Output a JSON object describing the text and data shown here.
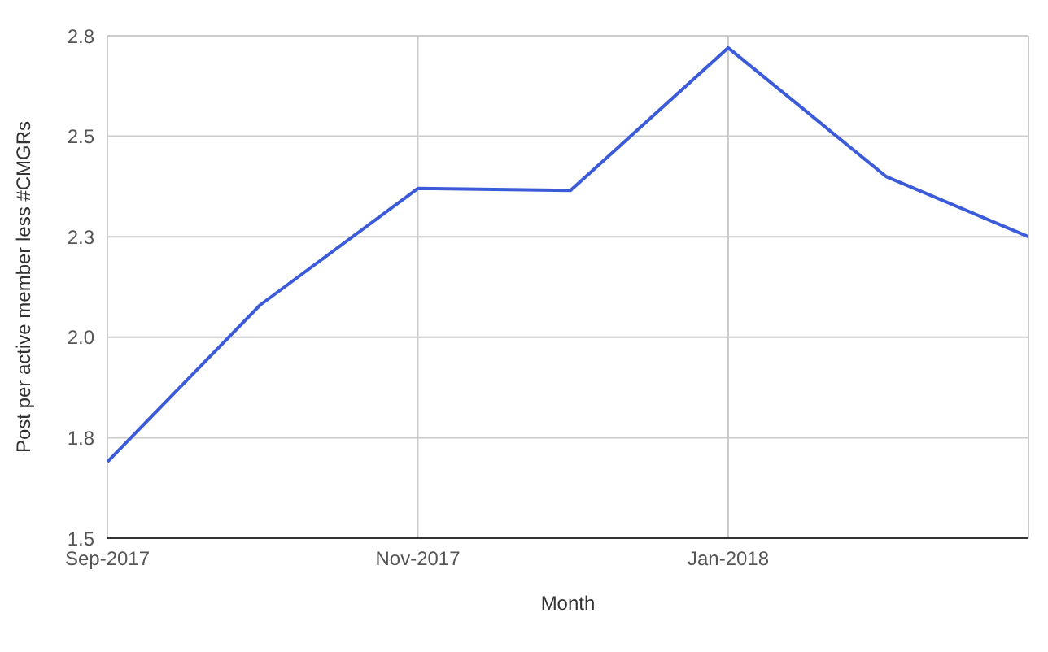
{
  "chart_data": {
    "type": "line",
    "xlabel": "Month",
    "ylabel": "Post per active member less #CMGRs",
    "x": [
      "2017-09",
      "2017-10",
      "2017-11",
      "2017-12",
      "2018-01",
      "2018-02",
      "2018-03"
    ],
    "series": [
      {
        "color": "#3b5bd9",
        "values": [
          1.69,
          2.08,
          2.37,
          2.365,
          2.72,
          2.4,
          2.25
        ]
      }
    ],
    "xlim": [
      "2017-09",
      "2018-03"
    ],
    "xticks": [
      {
        "value": "2017-09",
        "label": "Sep-2017"
      },
      {
        "value": "2017-11",
        "label": "Nov-2017"
      },
      {
        "value": "2018-01",
        "label": "Jan-2018"
      }
    ],
    "ylim": [
      1.5,
      2.75
    ],
    "yticks": [
      {
        "value": 1.5,
        "label": "1.5"
      },
      {
        "value": 1.75,
        "label": "1.8"
      },
      {
        "value": 2.0,
        "label": "2.0"
      },
      {
        "value": 2.25,
        "label": "2.3"
      },
      {
        "value": 2.5,
        "label": "2.5"
      },
      {
        "value": 2.75,
        "label": "2.8"
      }
    ],
    "grid": true,
    "legend": false,
    "marker": "none",
    "line_style": "solid"
  }
}
